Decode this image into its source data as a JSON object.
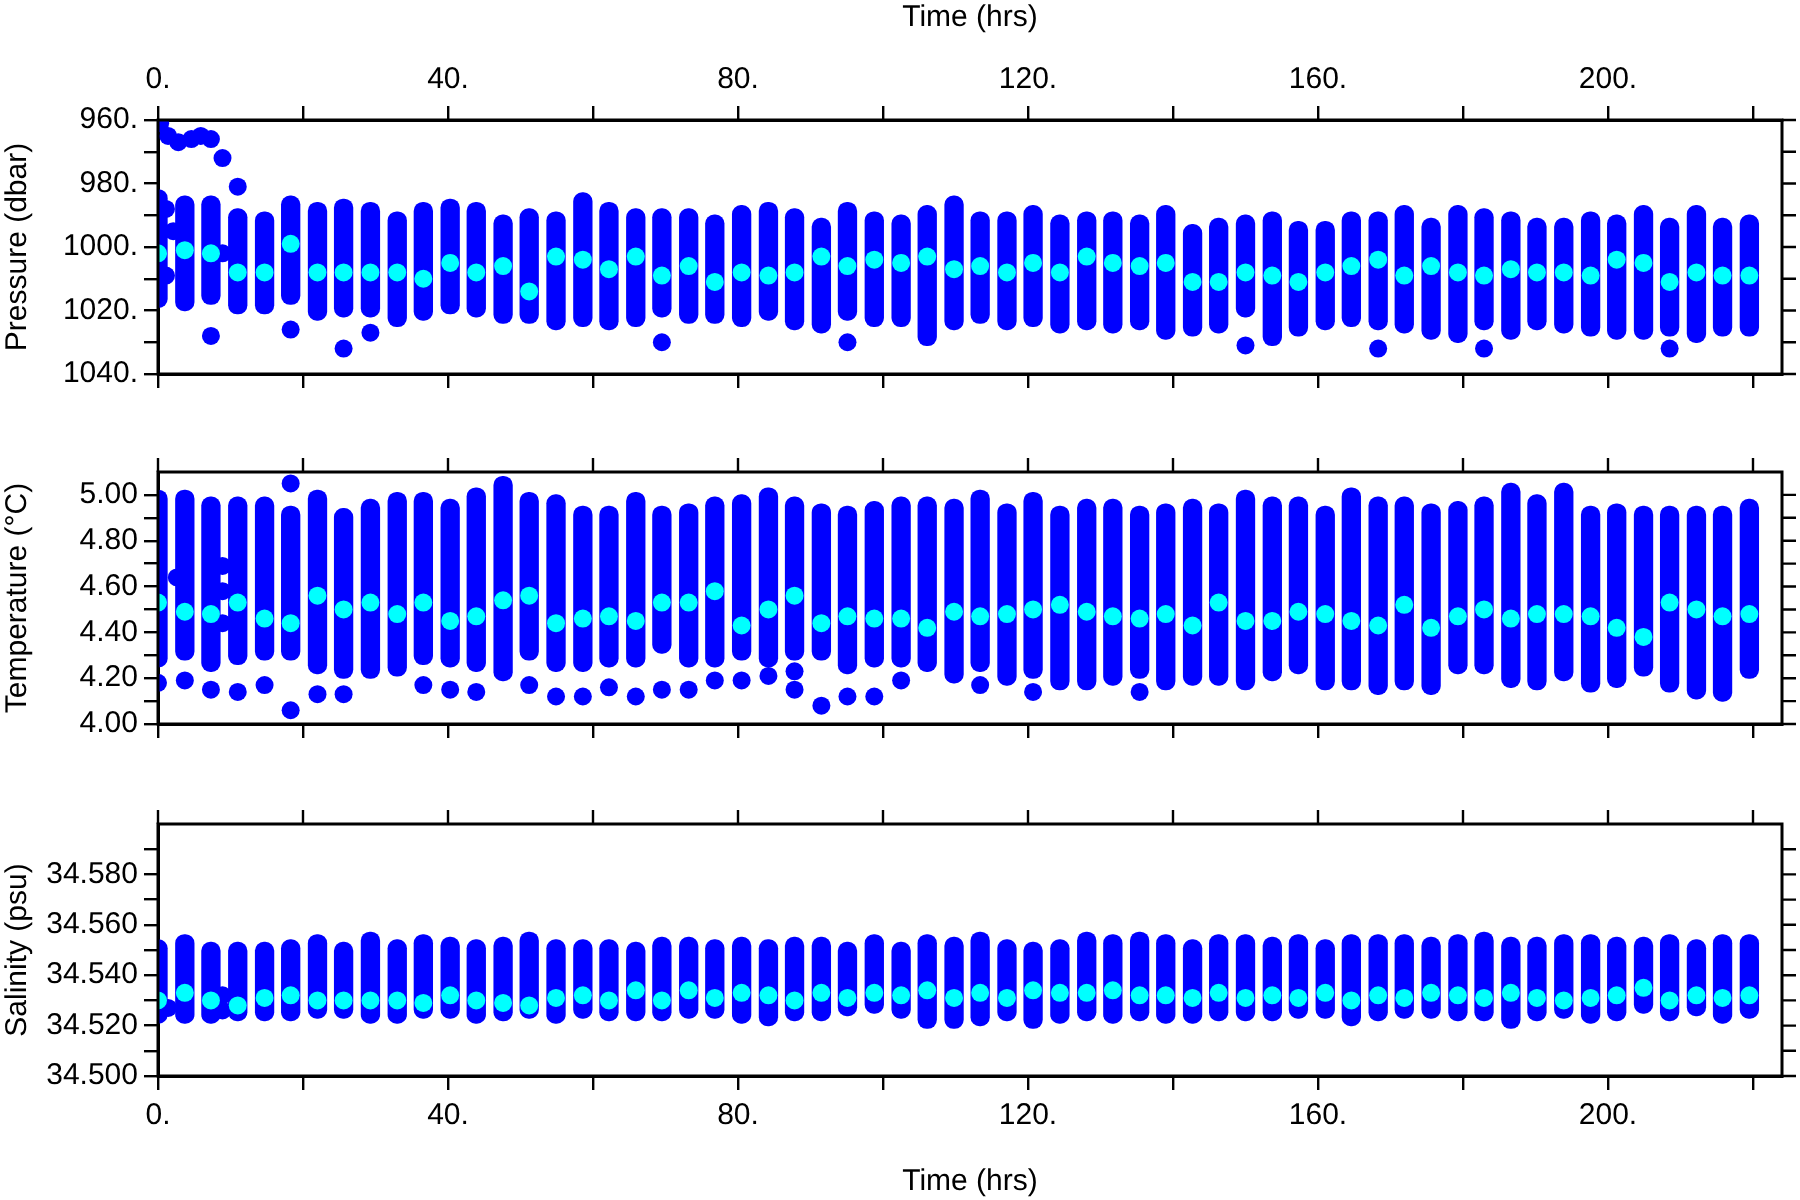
{
  "chart_data": [
    {
      "type": "scatter",
      "marker": "circle",
      "tick_labels": "y",
      "ylabel": "Pressure (dbar)",
      "x2label": "Time (hrs)",
      "xlim": [
        0,
        224
      ],
      "xticks": [
        {
          "value": 0,
          "label": null
        },
        {
          "value": 20,
          "label": null
        },
        {
          "value": 40,
          "label": null
        },
        {
          "value": 60,
          "label": null
        },
        {
          "value": 80,
          "label": null
        },
        {
          "value": 100,
          "label": null
        },
        {
          "value": 120,
          "label": null
        },
        {
          "value": 140,
          "label": null
        },
        {
          "value": 160,
          "label": null
        },
        {
          "value": 180,
          "label": null
        },
        {
          "value": 200,
          "label": null
        },
        {
          "value": 220,
          "label": null
        }
      ],
      "x2lim": [
        0,
        224
      ],
      "x2ticks": [
        {
          "value": 0,
          "label": "0."
        },
        {
          "value": 20,
          "label": null
        },
        {
          "value": 40,
          "label": "40."
        },
        {
          "value": 60,
          "label": null
        },
        {
          "value": 80,
          "label": "80."
        },
        {
          "value": 100,
          "label": null
        },
        {
          "value": 120,
          "label": "120."
        },
        {
          "value": 140,
          "label": null
        },
        {
          "value": 160,
          "label": "160."
        },
        {
          "value": 180,
          "label": null
        },
        {
          "value": 200,
          "label": "200."
        },
        {
          "value": 220,
          "label": null
        }
      ],
      "ylim": [
        1040,
        960
      ],
      "yticks": [
        {
          "value": 960,
          "label": "960."
        },
        {
          "value": 970,
          "label": null
        },
        {
          "value": 980,
          "label": "980."
        },
        {
          "value": 990,
          "label": null
        },
        {
          "value": 1000,
          "label": "1000."
        },
        {
          "value": 1010,
          "label": null
        },
        {
          "value": 1020,
          "label": "1020."
        },
        {
          "value": 1030,
          "label": null
        },
        {
          "value": 1040,
          "label": "1040."
        }
      ],
      "series": [
        {
          "type": "bar",
          "color": "#0000ff",
          "x": [
            0,
            3.7,
            7.3,
            11.0,
            14.7,
            18.3,
            22.0,
            25.6,
            29.3,
            33.0,
            36.6,
            40.3,
            43.9,
            47.6,
            51.2,
            54.9,
            58.6,
            62.2,
            65.9,
            69.5,
            73.2,
            76.8,
            80.5,
            84.2,
            87.8,
            91.5,
            95.1,
            98.8,
            102.5,
            106.1,
            109.8,
            113.4,
            117.1,
            120.7,
            124.4,
            128.1,
            131.7,
            135.4,
            139.0,
            142.7,
            146.3,
            150.0,
            153.7,
            157.3,
            161.0,
            164.6,
            168.3,
            171.9,
            175.6,
            179.3,
            182.9,
            186.6,
            190.2,
            193.9,
            197.6,
            201.2,
            204.9,
            208.5,
            212.2,
            215.8,
            219.5
          ],
          "base": [
            982,
            984,
            984,
            988,
            989,
            984,
            986,
            985,
            986,
            989,
            986,
            985,
            986,
            990,
            988,
            989,
            983,
            986,
            988,
            988,
            988,
            990,
            987,
            986,
            988,
            991,
            986,
            989,
            990,
            987,
            984,
            989,
            989,
            987,
            990,
            989,
            989,
            990,
            987,
            993,
            991,
            990,
            989,
            992,
            992,
            989,
            989,
            987,
            991,
            987,
            988,
            989,
            991,
            991,
            989,
            990,
            987,
            991,
            987,
            991,
            990
          ],
          "values": [
            37,
            36,
            34,
            33,
            32,
            34,
            37,
            37,
            36,
            36,
            37,
            36,
            36,
            34,
            36,
            37,
            42,
            40,
            37,
            34,
            36,
            34,
            38,
            37,
            38,
            36,
            37,
            36,
            35,
            44,
            42,
            35,
            37,
            38,
            37,
            37,
            38,
            36,
            42,
            35,
            36,
            32,
            42,
            36,
            34,
            36,
            37,
            40,
            38,
            43,
            38,
            40,
            35,
            36,
            39,
            39,
            42,
            37,
            43,
            37,
            38
          ]
        },
        {
          "color": "#0000ff",
          "x": [
            0.3,
            1.4,
            2.8,
            4.6,
            5.9,
            7.3,
            8.9,
            1.1,
            1.1,
            2.1,
            8.9,
            7.3,
            11.0,
            18.3,
            25.6,
            29.3,
            69.5,
            95.1,
            150.0,
            168.3,
            182.9,
            208.5
          ],
          "values": [
            961,
            965,
            967,
            966,
            965,
            966,
            972,
            988,
            1009,
            995,
            1002,
            1028,
            981,
            1026,
            1032,
            1027,
            1030,
            1030,
            1031,
            1032,
            1032,
            1032
          ]
        },
        {
          "color": "#00ffff",
          "x": [
            0,
            3.7,
            7.3,
            11.0,
            14.7,
            18.3,
            22.0,
            25.6,
            29.3,
            33.0,
            36.6,
            40.3,
            43.9,
            47.6,
            51.2,
            54.9,
            58.6,
            62.2,
            65.9,
            69.5,
            73.2,
            76.8,
            80.5,
            84.2,
            87.8,
            91.5,
            95.1,
            98.8,
            102.5,
            106.1,
            109.8,
            113.4,
            117.1,
            120.7,
            124.4,
            128.1,
            131.7,
            135.4,
            139.0,
            142.7,
            146.3,
            150.0,
            153.7,
            157.3,
            161.0,
            164.6,
            168.3,
            171.9,
            175.6,
            179.3,
            182.9,
            186.6,
            190.2,
            193.9,
            197.6,
            201.2,
            204.9,
            208.5,
            212.2,
            215.8,
            219.5
          ],
          "values": [
            1002,
            1001,
            1002,
            1008,
            1008,
            999,
            1008,
            1008,
            1008,
            1008,
            1010,
            1005,
            1008,
            1006,
            1014,
            1003,
            1004,
            1007,
            1003,
            1009,
            1006,
            1011,
            1008,
            1009,
            1008,
            1003,
            1006,
            1004,
            1005,
            1003,
            1007,
            1006,
            1008,
            1005,
            1008,
            1003,
            1005,
            1006,
            1005,
            1011,
            1011,
            1008,
            1009,
            1011,
            1008,
            1006,
            1004,
            1009,
            1006,
            1008,
            1009,
            1007,
            1008,
            1008,
            1009,
            1004,
            1005,
            1011,
            1008,
            1009,
            1009
          ]
        }
      ]
    },
    {
      "type": "scatter",
      "marker": "circle",
      "tick_labels": "y",
      "ylabel": "Temperature (°C)",
      "xlim": [
        0,
        224
      ],
      "xticks": [
        {
          "value": 0,
          "label": null
        },
        {
          "value": 20,
          "label": null
        },
        {
          "value": 40,
          "label": null
        },
        {
          "value": 60,
          "label": null
        },
        {
          "value": 80,
          "label": null
        },
        {
          "value": 100,
          "label": null
        },
        {
          "value": 120,
          "label": null
        },
        {
          "value": 140,
          "label": null
        },
        {
          "value": 160,
          "label": null
        },
        {
          "value": 180,
          "label": null
        },
        {
          "value": 200,
          "label": null
        },
        {
          "value": 220,
          "label": null
        }
      ],
      "ylim": [
        4.0,
        5.1
      ],
      "yticks": [
        {
          "value": 4.0,
          "label": "4.00"
        },
        {
          "value": 4.1,
          "label": null
        },
        {
          "value": 4.2,
          "label": "4.20"
        },
        {
          "value": 4.3,
          "label": null
        },
        {
          "value": 4.4,
          "label": "4.40"
        },
        {
          "value": 4.5,
          "label": null
        },
        {
          "value": 4.6,
          "label": "4.60"
        },
        {
          "value": 4.7,
          "label": null
        },
        {
          "value": 4.8,
          "label": "4.80"
        },
        {
          "value": 4.9,
          "label": null
        },
        {
          "value": 5.0,
          "label": "5.00"
        }
      ],
      "series": [
        {
          "type": "bar",
          "color": "#0000ff",
          "x": [
            0,
            3.7,
            7.3,
            11.0,
            14.7,
            18.3,
            22.0,
            25.6,
            29.3,
            33.0,
            36.6,
            40.3,
            43.9,
            47.6,
            51.2,
            54.9,
            58.6,
            62.2,
            65.9,
            69.5,
            73.2,
            76.8,
            80.5,
            84.2,
            87.8,
            91.5,
            95.1,
            98.8,
            102.5,
            106.1,
            109.8,
            113.4,
            117.1,
            120.7,
            124.4,
            128.1,
            131.7,
            135.4,
            139.0,
            142.7,
            146.3,
            150.0,
            153.7,
            157.3,
            161.0,
            164.6,
            168.3,
            171.9,
            175.6,
            179.3,
            182.9,
            186.6,
            190.2,
            193.9,
            197.6,
            201.2,
            204.9,
            208.5,
            212.2,
            215.8,
            219.5
          ],
          "base": [
            4.25,
            4.28,
            4.23,
            4.26,
            4.28,
            4.28,
            4.22,
            4.2,
            4.2,
            4.21,
            4.26,
            4.25,
            4.23,
            4.19,
            4.28,
            4.23,
            4.23,
            4.25,
            4.25,
            4.31,
            4.25,
            4.25,
            4.28,
            4.25,
            4.28,
            4.28,
            4.22,
            4.25,
            4.25,
            4.23,
            4.18,
            4.23,
            4.17,
            4.2,
            4.15,
            4.15,
            4.17,
            4.2,
            4.15,
            4.17,
            4.17,
            4.15,
            4.19,
            4.22,
            4.15,
            4.15,
            4.13,
            4.15,
            4.13,
            4.22,
            4.22,
            4.16,
            4.15,
            4.19,
            4.14,
            4.16,
            4.21,
            4.14,
            4.11,
            4.1,
            4.2
          ],
          "values": [
            0.77,
            0.74,
            0.76,
            0.73,
            0.71,
            0.67,
            0.8,
            0.74,
            0.78,
            0.8,
            0.75,
            0.73,
            0.8,
            0.89,
            0.73,
            0.77,
            0.72,
            0.7,
            0.76,
            0.64,
            0.71,
            0.74,
            0.72,
            0.78,
            0.71,
            0.68,
            0.73,
            0.72,
            0.74,
            0.76,
            0.8,
            0.79,
            0.79,
            0.81,
            0.8,
            0.83,
            0.81,
            0.75,
            0.81,
            0.81,
            0.79,
            0.87,
            0.8,
            0.77,
            0.8,
            0.88,
            0.86,
            0.84,
            0.83,
            0.75,
            0.77,
            0.89,
            0.85,
            0.86,
            0.81,
            0.8,
            0.74,
            0.81,
            0.84,
            0.85,
            0.78
          ]
        },
        {
          "color": "#0000ff",
          "x": [
            2.6,
            8.9,
            8.9,
            8.9,
            0,
            3.7,
            7.3,
            11.0,
            14.7,
            18.3,
            18.3,
            22.0,
            25.6,
            36.6,
            40.3,
            43.9,
            51.2,
            54.9,
            58.6,
            62.2,
            65.9,
            69.5,
            73.2,
            76.8,
            80.5,
            84.2,
            87.8,
            87.8,
            91.5,
            95.1,
            98.8,
            102.5,
            113.4,
            120.7,
            135.4
          ],
          "values": [
            4.64,
            4.69,
            4.58,
            4.44,
            4.18,
            4.19,
            4.15,
            4.14,
            4.17,
            5.05,
            4.06,
            4.13,
            4.13,
            4.17,
            4.15,
            4.14,
            4.17,
            4.12,
            4.12,
            4.16,
            4.12,
            4.15,
            4.15,
            4.19,
            4.19,
            4.21,
            4.23,
            4.15,
            4.08,
            4.12,
            4.12,
            4.19,
            4.17,
            4.14,
            4.14
          ]
        },
        {
          "color": "#00ffff",
          "x": [
            0,
            3.7,
            7.3,
            11.0,
            14.7,
            18.3,
            22.0,
            25.6,
            29.3,
            33.0,
            36.6,
            40.3,
            43.9,
            47.6,
            51.2,
            54.9,
            58.6,
            62.2,
            65.9,
            69.5,
            73.2,
            76.8,
            80.5,
            84.2,
            87.8,
            91.5,
            95.1,
            98.8,
            102.5,
            106.1,
            109.8,
            113.4,
            117.1,
            120.7,
            124.4,
            128.1,
            131.7,
            135.4,
            139.0,
            142.7,
            146.3,
            150.0,
            153.7,
            157.3,
            161.0,
            164.6,
            168.3,
            171.9,
            175.6,
            179.3,
            182.9,
            186.6,
            190.2,
            193.9,
            197.6,
            201.2,
            204.9,
            208.5,
            212.2,
            215.8,
            219.5
          ],
          "values": [
            4.53,
            4.49,
            4.48,
            4.53,
            4.46,
            4.44,
            4.56,
            4.5,
            4.53,
            4.48,
            4.53,
            4.45,
            4.47,
            4.54,
            4.56,
            4.44,
            4.46,
            4.47,
            4.45,
            4.53,
            4.53,
            4.58,
            4.43,
            4.5,
            4.56,
            4.44,
            4.47,
            4.46,
            4.46,
            4.42,
            4.49,
            4.47,
            4.48,
            4.5,
            4.52,
            4.49,
            4.47,
            4.46,
            4.48,
            4.43,
            4.53,
            4.45,
            4.45,
            4.49,
            4.48,
            4.45,
            4.43,
            4.52,
            4.42,
            4.47,
            4.5,
            4.46,
            4.48,
            4.48,
            4.47,
            4.42,
            4.38,
            4.53,
            4.5,
            4.47,
            4.48
          ]
        }
      ]
    },
    {
      "type": "scatter",
      "marker": "circle",
      "ylabel": "Salinity (psu)",
      "xlabel": "Time (hrs)",
      "xlim": [
        0,
        224
      ],
      "xticks": [
        {
          "value": 0,
          "label": "0."
        },
        {
          "value": 20,
          "label": null
        },
        {
          "value": 40,
          "label": "40."
        },
        {
          "value": 60,
          "label": null
        },
        {
          "value": 80,
          "label": "80."
        },
        {
          "value": 100,
          "label": null
        },
        {
          "value": 120,
          "label": "120."
        },
        {
          "value": 140,
          "label": null
        },
        {
          "value": 160,
          "label": "160."
        },
        {
          "value": 180,
          "label": null
        },
        {
          "value": 200,
          "label": "200."
        },
        {
          "value": 220,
          "label": null
        }
      ],
      "ylim": [
        34.5,
        34.6
      ],
      "yticks": [
        {
          "value": 34.5,
          "label": "34.500"
        },
        {
          "value": 34.51,
          "label": null
        },
        {
          "value": 34.52,
          "label": "34.520"
        },
        {
          "value": 34.53,
          "label": null
        },
        {
          "value": 34.54,
          "label": "34.540"
        },
        {
          "value": 34.55,
          "label": null
        },
        {
          "value": 34.56,
          "label": "34.560"
        },
        {
          "value": 34.57,
          "label": null
        },
        {
          "value": 34.58,
          "label": "34.580"
        },
        {
          "value": 34.59,
          "label": null
        }
      ],
      "series": [
        {
          "type": "bar",
          "color": "#0000ff",
          "x": [
            0,
            3.7,
            7.3,
            11.0,
            14.7,
            18.3,
            22.0,
            25.6,
            29.3,
            33.0,
            36.6,
            40.3,
            43.9,
            47.6,
            51.2,
            54.9,
            58.6,
            62.2,
            65.9,
            69.5,
            73.2,
            76.8,
            80.5,
            84.2,
            87.8,
            91.5,
            95.1,
            98.8,
            102.5,
            106.1,
            109.8,
            113.4,
            117.1,
            120.7,
            124.4,
            128.1,
            131.7,
            135.4,
            139.0,
            142.7,
            146.3,
            150.0,
            153.7,
            157.3,
            161.0,
            164.6,
            168.3,
            171.9,
            175.6,
            179.3,
            182.9,
            186.6,
            190.2,
            193.9,
            197.6,
            201.2,
            204.9,
            208.5,
            212.2,
            215.8,
            219.5
          ],
          "base": [
            34.521,
            34.521,
            34.521,
            34.522,
            34.522,
            34.522,
            34.523,
            34.523,
            34.521,
            34.521,
            34.523,
            34.523,
            34.521,
            34.522,
            34.523,
            34.521,
            34.523,
            34.522,
            34.522,
            34.522,
            34.523,
            34.523,
            34.521,
            34.52,
            34.522,
            34.522,
            34.524,
            34.525,
            34.523,
            34.519,
            34.519,
            34.52,
            34.522,
            34.519,
            34.521,
            34.522,
            34.521,
            34.522,
            34.521,
            34.521,
            34.522,
            34.522,
            34.522,
            34.523,
            34.523,
            34.52,
            34.522,
            34.523,
            34.523,
            34.522,
            34.522,
            34.519,
            34.522,
            34.523,
            34.521,
            34.522,
            34.525,
            34.522,
            34.524,
            34.521,
            34.523
          ],
          "values": [
            0.033,
            0.035,
            0.032,
            0.031,
            0.031,
            0.032,
            0.033,
            0.03,
            0.036,
            0.033,
            0.033,
            0.032,
            0.033,
            0.033,
            0.034,
            0.033,
            0.031,
            0.032,
            0.031,
            0.033,
            0.032,
            0.031,
            0.034,
            0.034,
            0.033,
            0.033,
            0.029,
            0.031,
            0.03,
            0.037,
            0.036,
            0.037,
            0.032,
            0.034,
            0.033,
            0.035,
            0.035,
            0.035,
            0.035,
            0.033,
            0.034,
            0.034,
            0.033,
            0.033,
            0.031,
            0.036,
            0.034,
            0.033,
            0.032,
            0.034,
            0.035,
            0.036,
            0.033,
            0.033,
            0.035,
            0.033,
            0.03,
            0.034,
            0.03,
            0.035,
            0.033
          ]
        },
        {
          "color": "#0000ff",
          "x": [
            1.4,
            8.9,
            8.9
          ],
          "values": [
            34.527,
            34.526,
            34.532
          ]
        },
        {
          "color": "#00ffff",
          "x": [
            0,
            3.7,
            7.3,
            11.0,
            14.7,
            18.3,
            22.0,
            25.6,
            29.3,
            33.0,
            36.6,
            40.3,
            43.9,
            47.6,
            51.2,
            54.9,
            58.6,
            62.2,
            65.9,
            69.5,
            73.2,
            76.8,
            80.5,
            84.2,
            87.8,
            91.5,
            95.1,
            98.8,
            102.5,
            106.1,
            109.8,
            113.4,
            117.1,
            120.7,
            124.4,
            128.1,
            131.7,
            135.4,
            139.0,
            142.7,
            146.3,
            150.0,
            153.7,
            157.3,
            161.0,
            164.6,
            168.3,
            171.9,
            175.6,
            179.3,
            182.9,
            186.6,
            190.2,
            193.9,
            197.6,
            201.2,
            204.9,
            208.5,
            212.2,
            215.8,
            219.5
          ],
          "values": [
            34.53,
            34.533,
            34.53,
            34.528,
            34.531,
            34.532,
            34.53,
            34.53,
            34.53,
            34.53,
            34.529,
            34.532,
            34.53,
            34.529,
            34.528,
            34.531,
            34.532,
            34.53,
            34.534,
            34.53,
            34.534,
            34.531,
            34.533,
            34.532,
            34.53,
            34.533,
            34.531,
            34.533,
            34.532,
            34.534,
            34.531,
            34.533,
            34.531,
            34.534,
            34.533,
            34.533,
            34.534,
            34.532,
            34.532,
            34.531,
            34.533,
            34.531,
            34.532,
            34.531,
            34.533,
            34.53,
            34.532,
            34.531,
            34.533,
            34.532,
            34.531,
            34.533,
            34.531,
            34.53,
            34.531,
            34.532,
            34.535,
            34.53,
            34.532,
            34.531,
            34.532
          ]
        }
      ]
    }
  ]
}
